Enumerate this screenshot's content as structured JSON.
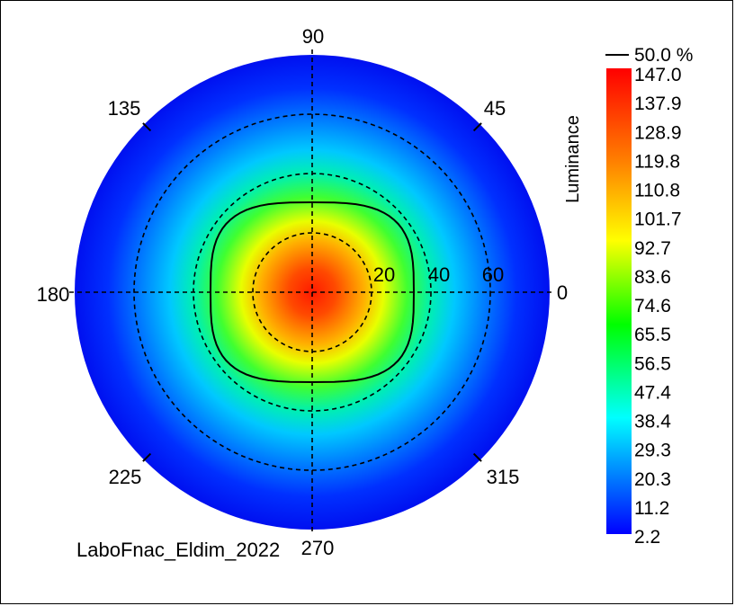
{
  "chart_data": {
    "type": "heatmap",
    "projection": "polar",
    "quantity_label": "Luminance",
    "contour_label": "50.0 %",
    "caption": "LaboFnac_Eldim_2022",
    "azimuth_labels": [
      "0",
      "45",
      "90",
      "135",
      "180",
      "225",
      "270",
      "315"
    ],
    "radial_labels": [
      "20",
      "40",
      "60"
    ],
    "radial_circles": [
      20,
      40,
      60,
      80
    ],
    "max_radius": 80,
    "colorbar_ticks": [
      "147.0",
      "137.9",
      "128.9",
      "119.8",
      "110.8",
      "101.7",
      "92.7",
      "83.6",
      "74.6",
      "65.5",
      "56.5",
      "47.4",
      "38.4",
      "29.3",
      "20.3",
      "11.2",
      "2.2"
    ],
    "value_range": [
      2.2,
      147.0
    ],
    "peak": {
      "r": 0,
      "value": 147.0
    },
    "radial_profile": [
      {
        "r": 0,
        "value": 147.0
      },
      {
        "r": 10,
        "value": 135.0
      },
      {
        "r": 20,
        "value": 105.0
      },
      {
        "r": 30,
        "value": 75.0
      },
      {
        "r": 40,
        "value": 50.0
      },
      {
        "r": 50,
        "value": 32.0
      },
      {
        "r": 60,
        "value": 18.0
      },
      {
        "r": 70,
        "value": 9.0
      },
      {
        "r": 80,
        "value": 4.0
      }
    ],
    "colormap": [
      "#ff0000",
      "#ff7f00",
      "#ffff00",
      "#00ff00",
      "#00ffff",
      "#0000ff"
    ],
    "grid": true
  }
}
